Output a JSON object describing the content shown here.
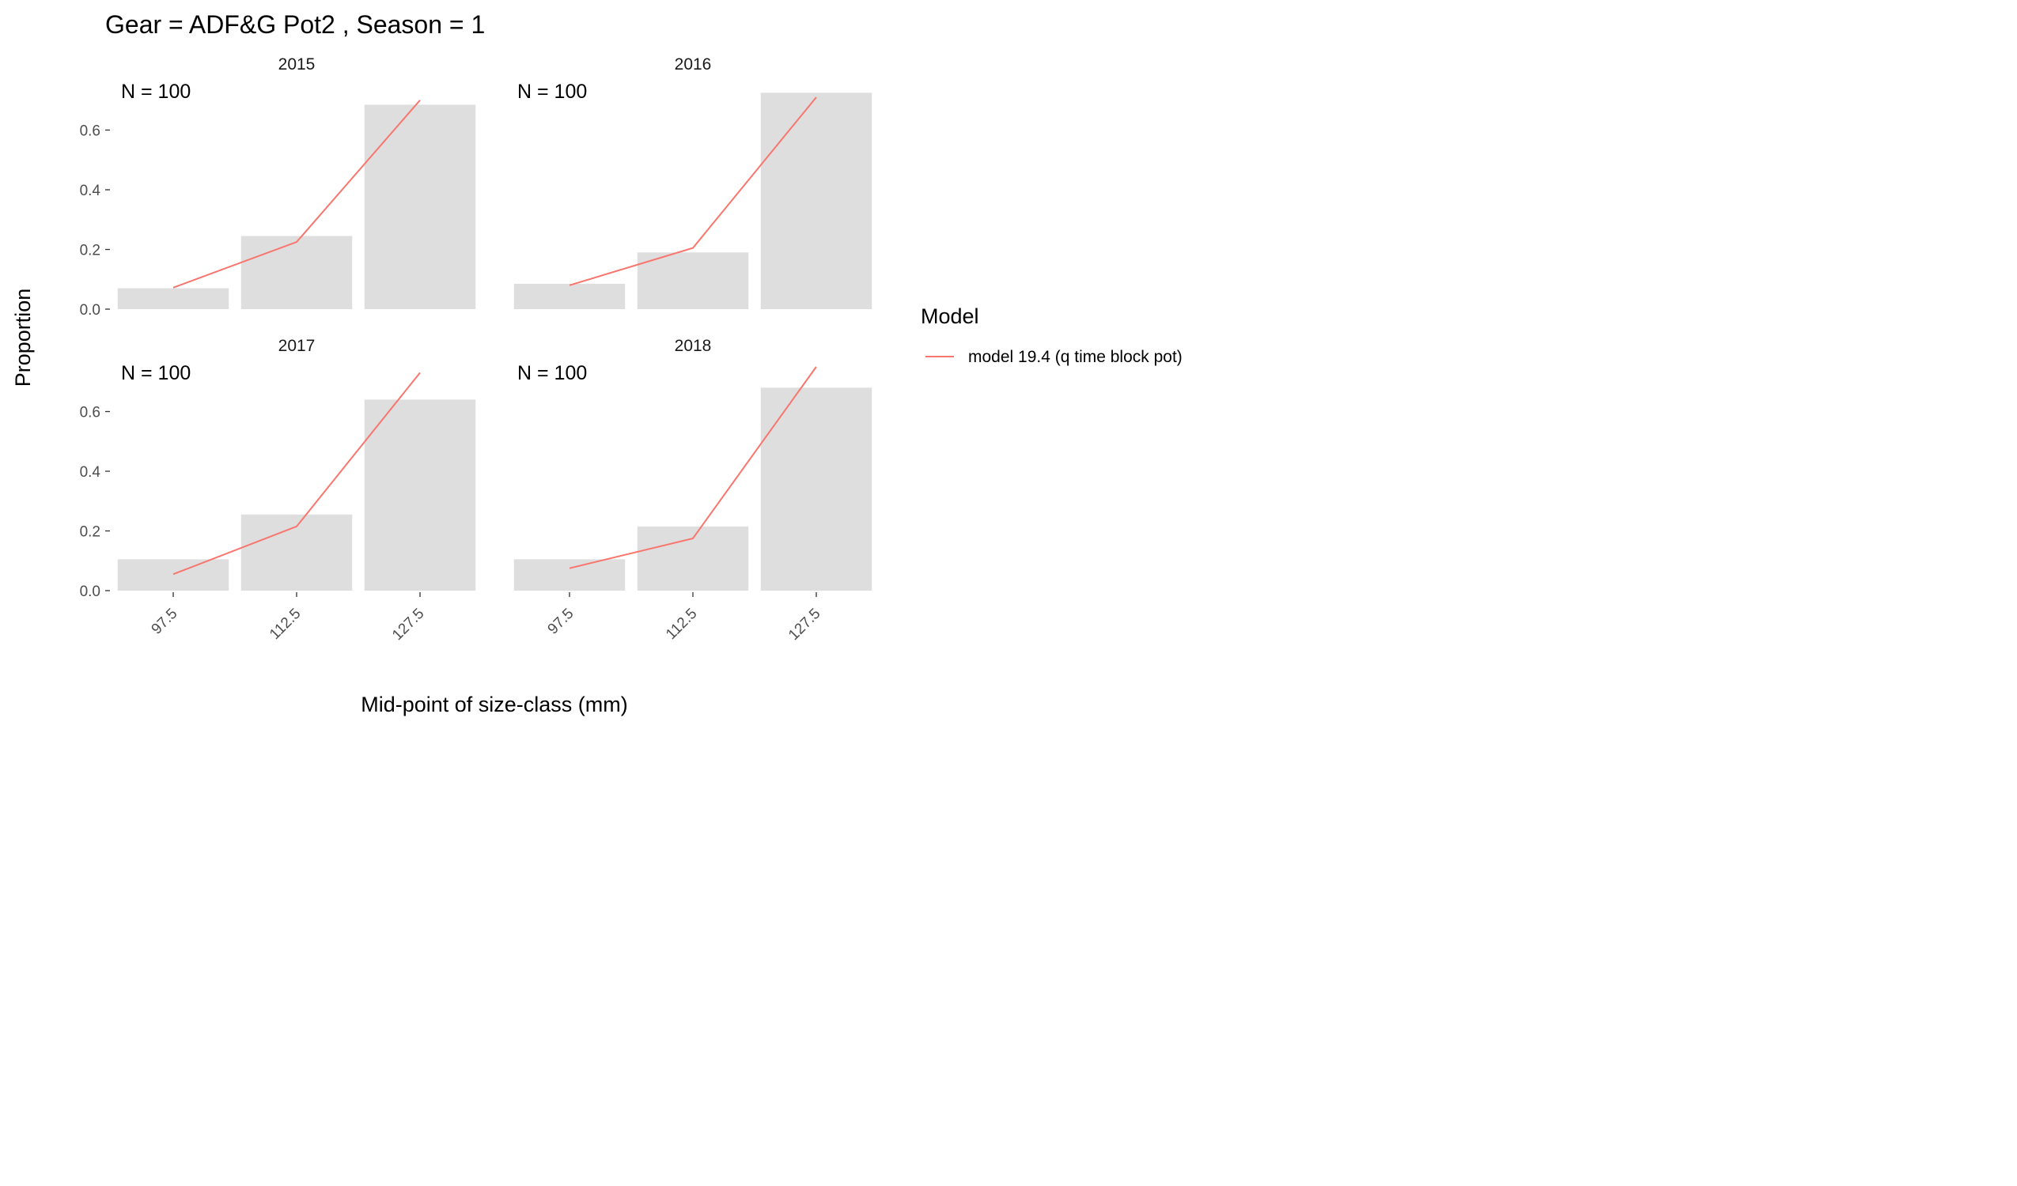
{
  "chart_data": {
    "type": "bar",
    "title": "Gear = ADF&G Pot2 , Season = 1",
    "xlabel": "Mid-point of size-class (mm)",
    "ylabel": "Proportion",
    "categories": [
      "97.5",
      "112.5",
      "127.5"
    ],
    "y_ticks": [
      "0.0",
      "0.2",
      "0.4",
      "0.6"
    ],
    "ylim": [
      0,
      0.72
    ],
    "legend": {
      "title": "Model",
      "position": "right"
    },
    "grid": false,
    "series_color": "#F8766D",
    "bar_color": "#DEDEDE",
    "panels": [
      {
        "strip": "2015",
        "n_label": "N = 100",
        "observed": [
          0.07,
          0.245,
          0.685
        ],
        "model": [
          0.072,
          0.225,
          0.7
        ]
      },
      {
        "strip": "2016",
        "n_label": "N = 100",
        "observed": [
          0.085,
          0.19,
          0.725
        ],
        "model": [
          0.08,
          0.205,
          0.71
        ]
      },
      {
        "strip": "2017",
        "n_label": "N = 100",
        "observed": [
          0.105,
          0.255,
          0.64
        ],
        "model": [
          0.055,
          0.215,
          0.73
        ]
      },
      {
        "strip": "2018",
        "n_label": "N = 100",
        "observed": [
          0.105,
          0.215,
          0.68
        ],
        "model": [
          0.075,
          0.175,
          0.75
        ]
      }
    ],
    "series": [
      {
        "name": "model 19.4 (q time block pot)"
      }
    ]
  }
}
